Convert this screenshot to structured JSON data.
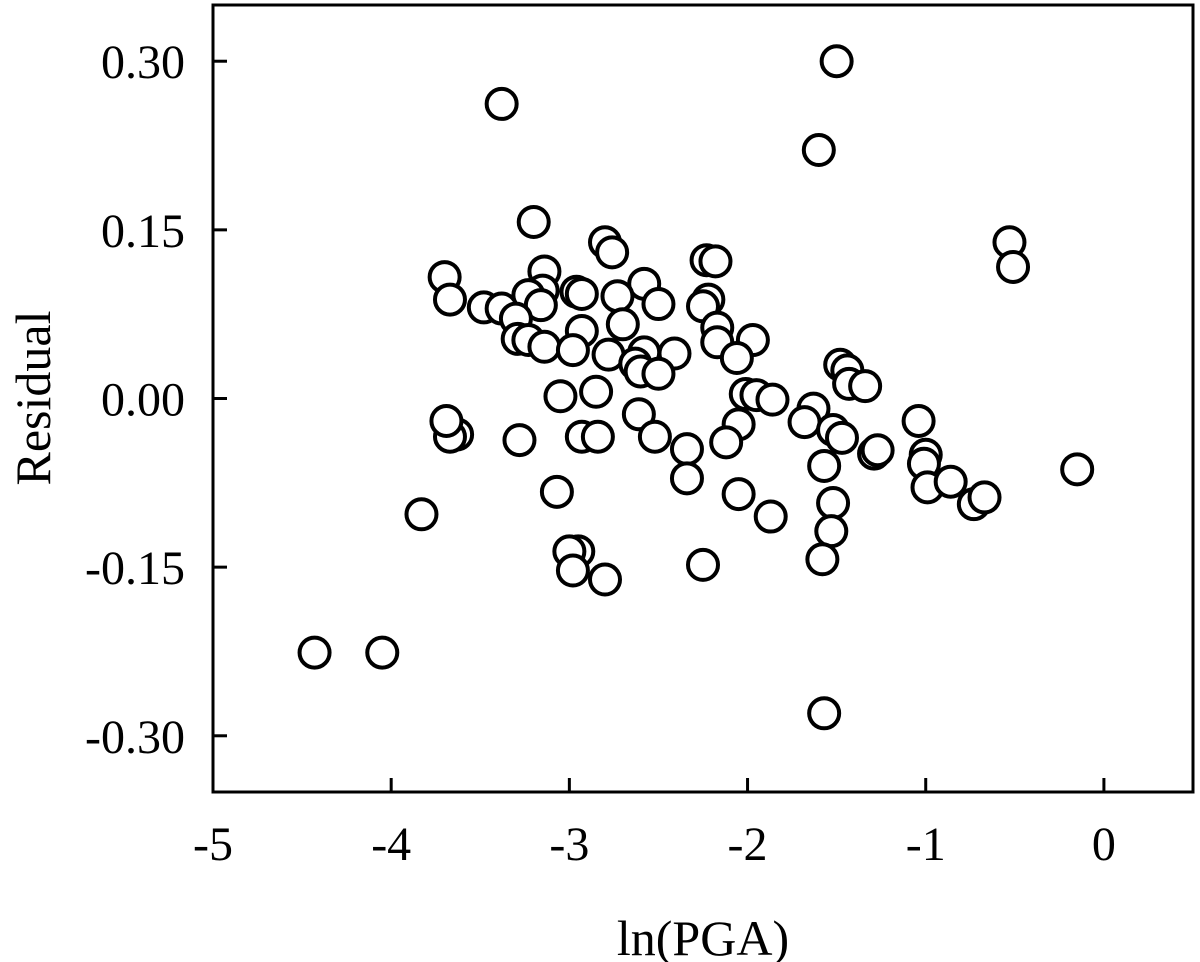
{
  "chart_data": {
    "type": "scatter",
    "title": "",
    "xlabel": "ln(PGA)",
    "ylabel": "Residual",
    "xlim": [
      -5,
      0.5
    ],
    "ylim": [
      -0.35,
      0.35
    ],
    "x_ticks": [
      -5,
      -4,
      -3,
      -2,
      -1,
      0
    ],
    "x_tick_labels": [
      "-5",
      "-4",
      "-3",
      "-2",
      "-1",
      "0"
    ],
    "y_ticks": [
      0.3,
      0.15,
      0.0,
      -0.15,
      -0.3
    ],
    "y_tick_labels": [
      "0.30",
      "0.15",
      "0.00",
      "-0.15",
      "-0.30"
    ],
    "grid": false,
    "legend": "none",
    "marker": "open-circle",
    "series": [
      {
        "name": "Residual",
        "points": [
          [
            -1.5,
            0.3
          ],
          [
            -3.38,
            0.262
          ],
          [
            -1.6,
            0.221
          ],
          [
            -3.2,
            0.157
          ],
          [
            -2.8,
            0.139
          ],
          [
            -2.76,
            0.13
          ],
          [
            -2.23,
            0.123
          ],
          [
            -2.18,
            0.122
          ],
          [
            -0.53,
            0.139
          ],
          [
            -0.51,
            0.117
          ],
          [
            -3.14,
            0.113
          ],
          [
            -3.7,
            0.108
          ],
          [
            -2.58,
            0.102
          ],
          [
            -3.15,
            0.096
          ],
          [
            -2.96,
            0.095
          ],
          [
            -2.93,
            0.093
          ],
          [
            -3.23,
            0.092
          ],
          [
            -2.73,
            0.091
          ],
          [
            -3.67,
            0.088
          ],
          [
            -2.22,
            0.088
          ],
          [
            -3.48,
            0.081
          ],
          [
            -3.38,
            0.08
          ],
          [
            -2.5,
            0.084
          ],
          [
            -2.25,
            0.082
          ],
          [
            -3.16,
            0.083
          ],
          [
            -3.3,
            0.071
          ],
          [
            -2.7,
            0.066
          ],
          [
            -2.93,
            0.06
          ],
          [
            -2.17,
            0.063
          ],
          [
            -1.97,
            0.052
          ],
          [
            -3.29,
            0.053
          ],
          [
            -3.23,
            0.052
          ],
          [
            -3.14,
            0.046
          ],
          [
            -2.17,
            0.05
          ],
          [
            -2.98,
            0.043
          ],
          [
            -2.78,
            0.039
          ],
          [
            -2.58,
            0.041
          ],
          [
            -2.41,
            0.04
          ],
          [
            -2.06,
            0.036
          ],
          [
            -2.63,
            0.031
          ],
          [
            -2.6,
            0.024
          ],
          [
            -2.5,
            0.022
          ],
          [
            -1.48,
            0.03
          ],
          [
            -1.44,
            0.025
          ],
          [
            -1.43,
            0.013
          ],
          [
            -1.34,
            0.011
          ],
          [
            -2.85,
            0.006
          ],
          [
            -3.05,
            0.002
          ],
          [
            -2.01,
            0.004
          ],
          [
            -1.95,
            0.003
          ],
          [
            -1.86,
            -0.001
          ],
          [
            -1.63,
            -0.009
          ],
          [
            -1.68,
            -0.021
          ],
          [
            -2.05,
            -0.023
          ],
          [
            -1.04,
            -0.02
          ],
          [
            -1.52,
            -0.028
          ],
          [
            -1.47,
            -0.035
          ],
          [
            -1.0,
            -0.05
          ],
          [
            -1.01,
            -0.058
          ],
          [
            -2.61,
            -0.014
          ],
          [
            -2.52,
            -0.034
          ],
          [
            -2.93,
            -0.034
          ],
          [
            -2.84,
            -0.034
          ],
          [
            -2.34,
            -0.045
          ],
          [
            -2.12,
            -0.039
          ],
          [
            -3.63,
            -0.032
          ],
          [
            -3.67,
            -0.034
          ],
          [
            -3.69,
            -0.02
          ],
          [
            -3.28,
            -0.037
          ],
          [
            -1.57,
            -0.06
          ],
          [
            -1.29,
            -0.049
          ],
          [
            -1.27,
            -0.046
          ],
          [
            -2.34,
            -0.071
          ],
          [
            -0.99,
            -0.079
          ],
          [
            -0.86,
            -0.074
          ],
          [
            -0.73,
            -0.094
          ],
          [
            -0.67,
            -0.088
          ],
          [
            -0.15,
            -0.063
          ],
          [
            -2.05,
            -0.085
          ],
          [
            -3.07,
            -0.083
          ],
          [
            -1.52,
            -0.093
          ],
          [
            -1.87,
            -0.105
          ],
          [
            -3.83,
            -0.103
          ],
          [
            -1.53,
            -0.118
          ],
          [
            -2.95,
            -0.136
          ],
          [
            -3.0,
            -0.136
          ],
          [
            -1.58,
            -0.143
          ],
          [
            -2.25,
            -0.148
          ],
          [
            -2.98,
            -0.153
          ],
          [
            -2.8,
            -0.161
          ],
          [
            -4.43,
            -0.226
          ],
          [
            -4.05,
            -0.226
          ],
          [
            -1.57,
            -0.28
          ]
        ]
      }
    ]
  }
}
